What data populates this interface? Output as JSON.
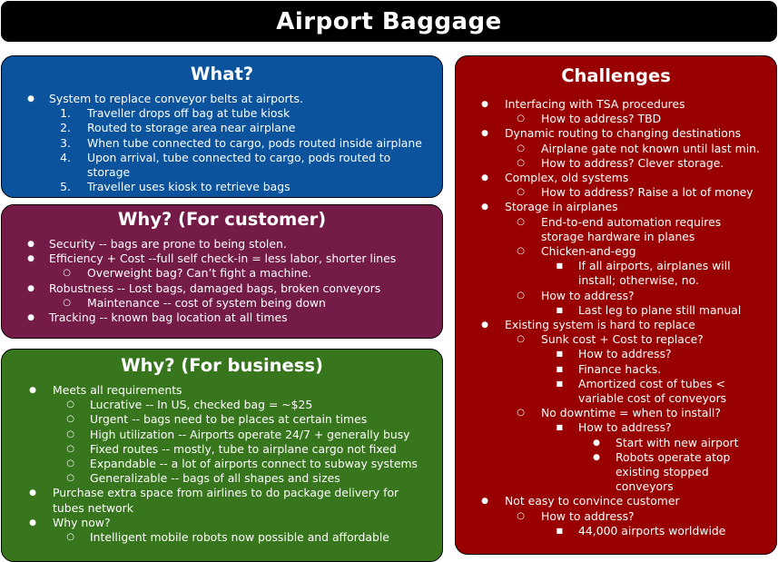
{
  "title": "Airport Baggage",
  "colors": {
    "title_bg": "#000000",
    "what_bg": "#0b539c",
    "why_customer_bg": "#741b47",
    "why_business_bg": "#38761d",
    "challenges_bg": "#990000",
    "text": "#ffffff"
  },
  "what": {
    "heading": "What?",
    "items": [
      {
        "level": 1,
        "marker": "●",
        "text": "System to replace conveyor belts at airports."
      },
      {
        "level": 2,
        "marker": "1.",
        "text": "Traveller drops off bag at tube kiosk"
      },
      {
        "level": 2,
        "marker": "2.",
        "text": "Routed to storage area near airplane"
      },
      {
        "level": 2,
        "marker": "3.",
        "text": "When tube connected to cargo, pods routed inside airplane"
      },
      {
        "level": 2,
        "marker": "4.",
        "text": "Upon arrival, tube connected to cargo, pods routed to storage"
      },
      {
        "level": 2,
        "marker": "5.",
        "text": "Traveller uses kiosk to retrieve bags"
      }
    ]
  },
  "why_customer": {
    "heading": "Why? (For customer)",
    "items": [
      {
        "level": 1,
        "marker": "●",
        "text": "Security -- bags are prone to being stolen."
      },
      {
        "level": 1,
        "marker": "●",
        "text": "Efficiency + Cost --full self check-in = less labor, shorter lines"
      },
      {
        "level": 2,
        "marker": "○",
        "text": "Overweight bag?  Can’t fight a machine."
      },
      {
        "level": 1,
        "marker": "●",
        "text": "Robustness -- Lost bags, damaged bags, broken conveyors"
      },
      {
        "level": 2,
        "marker": "○",
        "text": "Maintenance -- cost of system being down"
      },
      {
        "level": 1,
        "marker": "●",
        "text": "Tracking -- known bag location at all times"
      }
    ]
  },
  "why_business": {
    "heading": "Why? (For business)",
    "items": [
      {
        "level": 1,
        "marker": "●",
        "text": "Meets all requirements"
      },
      {
        "level": 2,
        "marker": "○",
        "text": "Lucrative -- In US, checked bag = ~$25"
      },
      {
        "level": 2,
        "marker": "○",
        "text": "Urgent -- bags need to be places at certain times"
      },
      {
        "level": 2,
        "marker": "○",
        "text": "High utilization -- Airports operate 24/7 + generally busy"
      },
      {
        "level": 2,
        "marker": "○",
        "text": "Fixed routes -- mostly, tube to airplane cargo not fixed"
      },
      {
        "level": 2,
        "marker": "○",
        "text": "Expandable -- a lot of airports connect to subway systems"
      },
      {
        "level": 2,
        "marker": "○",
        "text": "Generalizable -- bags of all shapes and sizes"
      },
      {
        "level": 1,
        "marker": "●",
        "text": "Purchase extra space from airlines to do package delivery for tubes network"
      },
      {
        "level": 1,
        "marker": "●",
        "text": "Why now?"
      },
      {
        "level": 2,
        "marker": "○",
        "text": "Intelligent mobile robots now possible and affordable"
      }
    ]
  },
  "challenges": {
    "heading": "Challenges",
    "items": [
      {
        "level": 1,
        "marker": "●",
        "text": "Interfacing with TSA procedures"
      },
      {
        "level": 2,
        "marker": "○",
        "text": "How to address? TBD"
      },
      {
        "level": 1,
        "marker": "●",
        "text": "Dynamic routing to changing destinations"
      },
      {
        "level": 2,
        "marker": "○",
        "text": "Airplane gate not known until last min."
      },
      {
        "level": 2,
        "marker": "○",
        "text": "How to address? Clever storage."
      },
      {
        "level": 1,
        "marker": "●",
        "text": "Complex, old systems"
      },
      {
        "level": 2,
        "marker": "○",
        "text": "How to address? Raise a lot of money"
      },
      {
        "level": 1,
        "marker": "●",
        "text": "Storage in airplanes"
      },
      {
        "level": 2,
        "marker": "○",
        "text": "End-to-end automation requires storage hardware in planes"
      },
      {
        "level": 2,
        "marker": "○",
        "text": "Chicken-and-egg"
      },
      {
        "level": 3,
        "marker": "■",
        "text": "If all airports, airplanes will install; otherwise, no."
      },
      {
        "level": 2,
        "marker": "○",
        "text": "How to address?"
      },
      {
        "level": 3,
        "marker": "■",
        "text": "Last leg to plane still manual"
      },
      {
        "level": 1,
        "marker": "●",
        "text": "Existing system is hard to replace"
      },
      {
        "level": 2,
        "marker": "○",
        "text": "Sunk cost + Cost to replace?"
      },
      {
        "level": 3,
        "marker": "■",
        "text": "How to address?"
      },
      {
        "level": 3,
        "marker": "■",
        "text": "Finance hacks."
      },
      {
        "level": 3,
        "marker": "■",
        "text": "Amortized cost of tubes < variable cost of conveyors"
      },
      {
        "level": 2,
        "marker": "○",
        "text": "No downtime = when to install?"
      },
      {
        "level": 3,
        "marker": "■",
        "text": "How to address?"
      },
      {
        "level": 4,
        "marker": "●",
        "text": "Start with new airport"
      },
      {
        "level": 4,
        "marker": "●",
        "text": "Robots operate atop existing stopped conveyors"
      },
      {
        "level": 1,
        "marker": "●",
        "text": "Not easy to convince customer"
      },
      {
        "level": 2,
        "marker": "○",
        "text": "How to address?"
      },
      {
        "level": 3,
        "marker": "■",
        "text": "44,000 airports worldwide"
      }
    ]
  }
}
